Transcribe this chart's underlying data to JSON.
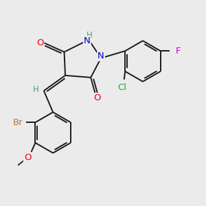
{
  "background_color": "#ebebeb",
  "bond_color": "#1a1a1a",
  "atom_colors": {
    "O": "#e8000d",
    "N": "#0000cc",
    "H": "#40a080",
    "Br": "#b87333",
    "Cl": "#22aa22",
    "F": "#cc00cc",
    "C": "#1a1a1a"
  },
  "font_size": 8.5,
  "figsize": [
    3.0,
    3.0
  ],
  "dpi": 100,
  "xlim": [
    0,
    10
  ],
  "ylim": [
    0,
    10
  ]
}
